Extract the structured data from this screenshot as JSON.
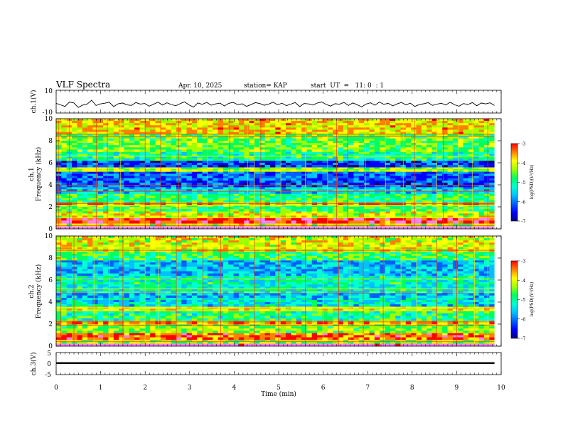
{
  "header": {
    "title": "VLF Spectra",
    "date": "Apr. 10, 2025",
    "station": "station= KAP",
    "start": "start  UT  =   11: 0  : 1"
  },
  "colors": {
    "scale": [
      "#000080",
      "#0000ff",
      "#0060ff",
      "#00c0ff",
      "#00ffd0",
      "#00ff60",
      "#a0ff00",
      "#ffff00",
      "#ff8000",
      "#ff0000",
      "#ff80ff",
      "#ffffff"
    ]
  },
  "chart_data": [
    {
      "type": "line",
      "name": "ch1-waveform",
      "ylabel": "ch.1(V)",
      "ylim": [
        -10,
        10
      ],
      "yticks": [
        "10",
        "-10"
      ],
      "x_range_min": [
        0,
        9.85
      ],
      "description_shape": "noisy waveform around -1 V, amplitude about 5 V",
      "samples": [
        -1.5,
        -2.8,
        -4.2,
        -0.3,
        -1.1,
        -5.1,
        -3.0,
        -2.2,
        1.2,
        -3.4,
        -2.0,
        -1.4,
        -0.5,
        -4.3,
        -1.9,
        -1.2,
        -2.9,
        -3.3,
        -0.8,
        -2.1,
        -1.6,
        -4.0,
        -2.3,
        -0.4,
        -3.0,
        -1.0,
        -2.5,
        -3.6,
        -1.8,
        -0.2,
        -2.9,
        -4.8,
        -1.1,
        -2.4,
        -0.7,
        -3.1,
        -2.0,
        -1.3,
        -3.8,
        -1.5,
        -0.6,
        -2.7,
        -1.9,
        -4.1,
        -2.6,
        -0.9,
        -1.7,
        -3.2,
        -2.1,
        -0.5,
        -2.8,
        -1.4,
        -3.5,
        -2.2,
        -0.8,
        -4.4,
        -1.6,
        -2.0,
        -3.0,
        -1.2,
        -0.3,
        -2.5,
        -3.9,
        -1.8,
        -2.3,
        -0.6,
        -3.4,
        -1.1,
        -2.7,
        -4.6,
        -2.1,
        -1.0,
        -3.1,
        -0.4,
        -2.4,
        -1.5,
        -3.7,
        -2.0,
        -0.7,
        -2.9,
        -1.3,
        -4.2,
        -2.6,
        -1.9,
        -0.9,
        -3.3,
        -2.2,
        -1.4,
        -3.0,
        -0.5,
        -2.8,
        -4.0,
        -1.7,
        -2.5,
        -0.8,
        -3.6,
        -1.2,
        -2.0,
        -1.0,
        -3.4
      ],
      "xlabel": "",
      "title": ""
    },
    {
      "type": "heatmap",
      "name": "ch1-spectrogram",
      "ylabel": "ch.1",
      "ylabel2": "Frequency (kHz)",
      "xlim": [
        0,
        10
      ],
      "ylim": [
        0,
        10
      ],
      "yticks": [
        "0",
        "2",
        "4",
        "6",
        "8",
        "10"
      ],
      "colorbar": {
        "label": "log(PSD)(V²/Hz)",
        "range": [
          -7,
          -3
        ],
        "ticks": [
          "-3",
          "-4",
          "-5",
          "-6",
          "-7"
        ]
      },
      "profile_kHz": [
        [
          0,
          0.25,
          -2.8
        ],
        [
          0.25,
          0.5,
          -4.5
        ],
        [
          0.5,
          1.0,
          -3.6
        ],
        [
          1.0,
          1.6,
          -4.4
        ],
        [
          1.6,
          2.2,
          -4.9
        ],
        [
          2.2,
          2.4,
          -3.9
        ],
        [
          2.4,
          3.2,
          -5.0
        ],
        [
          3.2,
          3.8,
          -5.6
        ],
        [
          3.8,
          4.4,
          -6.2
        ],
        [
          4.4,
          5.2,
          -6.1
        ],
        [
          5.2,
          5.6,
          -4.6
        ],
        [
          5.6,
          6.2,
          -6.3
        ],
        [
          6.2,
          7.0,
          -5.2
        ],
        [
          7.0,
          8.6,
          -4.8
        ],
        [
          8.6,
          10,
          -4.2
        ]
      ],
      "lines_kHz": [
        0.3,
        1.0,
        2.1,
        2.3,
        3.4,
        3.9,
        5.3,
        6.6,
        8.4,
        8.6
      ],
      "sferic_min": [
        0.05,
        0.3,
        0.9,
        1.15,
        1.45,
        2.0,
        2.35,
        2.75,
        3.4,
        3.9,
        4.3,
        4.45,
        4.6,
        5.05,
        5.6,
        6.1,
        6.3,
        6.55,
        6.95,
        7.4,
        7.8,
        8.05,
        8.55,
        8.7,
        9.05,
        9.35,
        9.7
      ]
    },
    {
      "type": "heatmap",
      "name": "ch2-spectrogram",
      "ylabel": "ch.2",
      "ylabel2": "Frequency (kHz)",
      "xlim": [
        0,
        10
      ],
      "ylim": [
        0,
        10
      ],
      "yticks": [
        "0",
        "2",
        "4",
        "6",
        "8",
        "10"
      ],
      "colorbar": {
        "label": "log(PSD)(V²/Hz)",
        "range": [
          -7,
          -3
        ],
        "ticks": [
          "-3",
          "-4",
          "-5",
          "-6",
          "-7"
        ]
      },
      "profile_kHz": [
        [
          0,
          0.25,
          -2.9
        ],
        [
          0.25,
          0.6,
          -4.6
        ],
        [
          0.6,
          1.2,
          -3.8
        ],
        [
          1.2,
          2.0,
          -4.7
        ],
        [
          2.0,
          2.3,
          -4.0
        ],
        [
          2.3,
          3.2,
          -5.1
        ],
        [
          3.2,
          3.6,
          -4.3
        ],
        [
          3.6,
          4.4,
          -5.5
        ],
        [
          4.4,
          5.0,
          -5.7
        ],
        [
          5.0,
          6.4,
          -5.3
        ],
        [
          6.4,
          7.8,
          -5.7
        ],
        [
          7.8,
          8.6,
          -5.0
        ],
        [
          8.6,
          10,
          -4.4
        ]
      ],
      "lines_kHz": [
        0.4,
        1.9,
        2.2,
        3.2,
        3.5,
        4.9,
        5.2,
        6.1,
        8.7,
        9.0
      ],
      "sferic_min": [
        0.1,
        0.4,
        0.85,
        1.2,
        1.5,
        2.0,
        2.3,
        2.7,
        3.3,
        3.7,
        4.45,
        5.0,
        5.6,
        6.0,
        6.35,
        6.6,
        6.9,
        7.35,
        7.75,
        8.1,
        8.55,
        9.0,
        9.4,
        9.7
      ]
    },
    {
      "type": "line",
      "name": "ch3-waveform",
      "ylabel": "ch.3(V)",
      "xlabel": "Time (min)",
      "ylim": [
        -5,
        5
      ],
      "yticks": [
        "5",
        "0",
        "-5"
      ],
      "xlim": [
        0,
        10
      ],
      "xticks": [
        "0",
        "1",
        "2",
        "3",
        "4",
        "5",
        "6",
        "7",
        "8",
        "9",
        "10"
      ],
      "level_band_V": [
        -0.2,
        0.6
      ],
      "x_range_min": [
        0,
        9.85
      ],
      "title": ""
    }
  ]
}
